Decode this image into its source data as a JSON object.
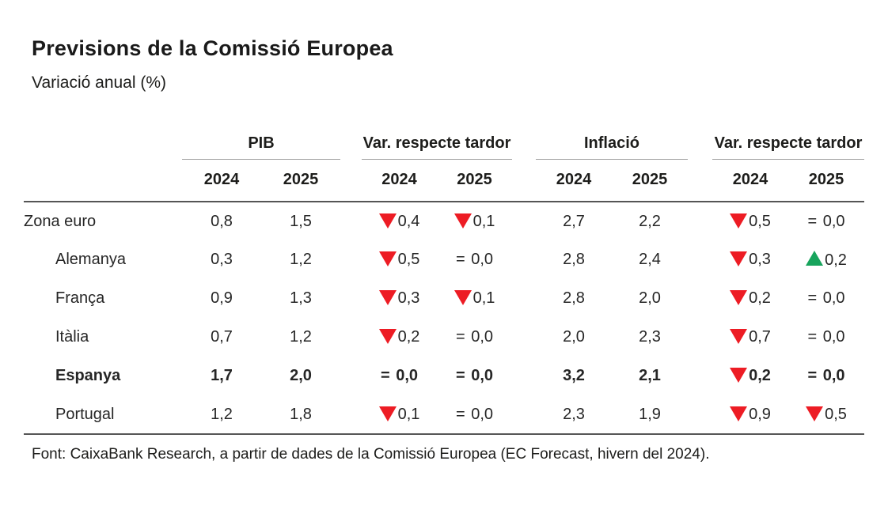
{
  "figure": {
    "title": "Previsions de la Comissió Europea",
    "subtitle": "Variació anual (%)",
    "source": "Font: CaixaBank Research, a partir de dades de la Comissió Europea (EC Forecast, hivern del 2024)."
  },
  "colors": {
    "down_triangle": "#ed1c24",
    "up_triangle": "#17a45c",
    "text": "#262626",
    "rule_dark": "#555555",
    "rule_light": "#a3a3a3"
  },
  "table": {
    "equals_sign": "=",
    "groups": [
      {
        "label": "PIB",
        "years": [
          "2024",
          "2025"
        ]
      },
      {
        "label": "Var. respecte tardor",
        "years": [
          "2024",
          "2025"
        ]
      },
      {
        "label": "Inflació",
        "years": [
          "2024",
          "2025"
        ]
      },
      {
        "label": "Var. respecte tardor",
        "years": [
          "2024",
          "2025"
        ]
      }
    ],
    "rows": [
      {
        "label": "Zona euro",
        "indent": false,
        "bold": false,
        "cells": [
          {
            "v": "0,8"
          },
          {
            "v": "1,5"
          },
          {
            "d": "down",
            "v": "0,4"
          },
          {
            "d": "down",
            "v": "0,1"
          },
          {
            "v": "2,7"
          },
          {
            "v": "2,2"
          },
          {
            "d": "down",
            "v": "0,5"
          },
          {
            "d": "eq",
            "v": "0,0"
          }
        ]
      },
      {
        "label": "Alemanya",
        "indent": true,
        "bold": false,
        "cells": [
          {
            "v": "0,3"
          },
          {
            "v": "1,2"
          },
          {
            "d": "down",
            "v": "0,5"
          },
          {
            "d": "eq",
            "v": "0,0"
          },
          {
            "v": "2,8"
          },
          {
            "v": "2,4"
          },
          {
            "d": "down",
            "v": "0,3"
          },
          {
            "d": "up",
            "v": "0,2"
          }
        ]
      },
      {
        "label": "França",
        "indent": true,
        "bold": false,
        "cells": [
          {
            "v": "0,9"
          },
          {
            "v": "1,3"
          },
          {
            "d": "down",
            "v": "0,3"
          },
          {
            "d": "down",
            "v": "0,1"
          },
          {
            "v": "2,8"
          },
          {
            "v": "2,0"
          },
          {
            "d": "down",
            "v": "0,2"
          },
          {
            "d": "eq",
            "v": "0,0"
          }
        ]
      },
      {
        "label": "Itàlia",
        "indent": true,
        "bold": false,
        "cells": [
          {
            "v": "0,7"
          },
          {
            "v": "1,2"
          },
          {
            "d": "down",
            "v": "0,2"
          },
          {
            "d": "eq",
            "v": "0,0"
          },
          {
            "v": "2,0"
          },
          {
            "v": "2,3"
          },
          {
            "d": "down",
            "v": "0,7"
          },
          {
            "d": "eq",
            "v": "0,0"
          }
        ]
      },
      {
        "label": "Espanya",
        "indent": true,
        "bold": true,
        "cells": [
          {
            "v": "1,7"
          },
          {
            "v": "2,0"
          },
          {
            "d": "eq",
            "v": "0,0"
          },
          {
            "d": "eq",
            "v": "0,0"
          },
          {
            "v": "3,2"
          },
          {
            "v": "2,1"
          },
          {
            "d": "down",
            "v": "0,2"
          },
          {
            "d": "eq",
            "v": "0,0"
          }
        ]
      },
      {
        "label": "Portugal",
        "indent": true,
        "bold": false,
        "cells": [
          {
            "v": "1,2"
          },
          {
            "v": "1,8"
          },
          {
            "d": "down",
            "v": "0,1"
          },
          {
            "d": "eq",
            "v": "0,0"
          },
          {
            "v": "2,3"
          },
          {
            "v": "1,9"
          },
          {
            "d": "down",
            "v": "0,9"
          },
          {
            "d": "down",
            "v": "0,5"
          }
        ]
      }
    ]
  },
  "chart_data": {
    "type": "table",
    "title": "Previsions de la Comissió Europea",
    "subtitle": "Variació anual (%)",
    "column_groups": [
      "PIB",
      "Var. respecte tardor",
      "Inflació",
      "Var. respecte tardor"
    ],
    "columns": [
      "PIB 2024",
      "PIB 2025",
      "PIB var. respecte tardor 2024",
      "PIB var. respecte tardor 2025",
      "Inflació 2024",
      "Inflació 2025",
      "Inflació var. respecte tardor 2024",
      "Inflació var. respecte tardor 2025"
    ],
    "rows": [
      {
        "label": "Zona euro",
        "values": [
          0.8,
          1.5,
          -0.4,
          -0.1,
          2.7,
          2.2,
          -0.5,
          0.0
        ]
      },
      {
        "label": "Alemanya",
        "values": [
          0.3,
          1.2,
          -0.5,
          0.0,
          2.8,
          2.4,
          -0.3,
          0.2
        ]
      },
      {
        "label": "França",
        "values": [
          0.9,
          1.3,
          -0.3,
          -0.1,
          2.8,
          2.0,
          -0.2,
          0.0
        ]
      },
      {
        "label": "Itàlia",
        "values": [
          0.7,
          1.2,
          -0.2,
          0.0,
          2.0,
          2.3,
          -0.7,
          0.0
        ]
      },
      {
        "label": "Espanya",
        "values": [
          1.7,
          2.0,
          0.0,
          0.0,
          3.2,
          2.1,
          -0.2,
          0.0
        ]
      },
      {
        "label": "Portugal",
        "values": [
          1.2,
          1.8,
          -0.1,
          0.0,
          2.3,
          1.9,
          -0.9,
          -0.5
        ]
      }
    ],
    "source": "Font: CaixaBank Research, a partir de dades de la Comissió Europea (EC Forecast, hivern del 2024)."
  }
}
